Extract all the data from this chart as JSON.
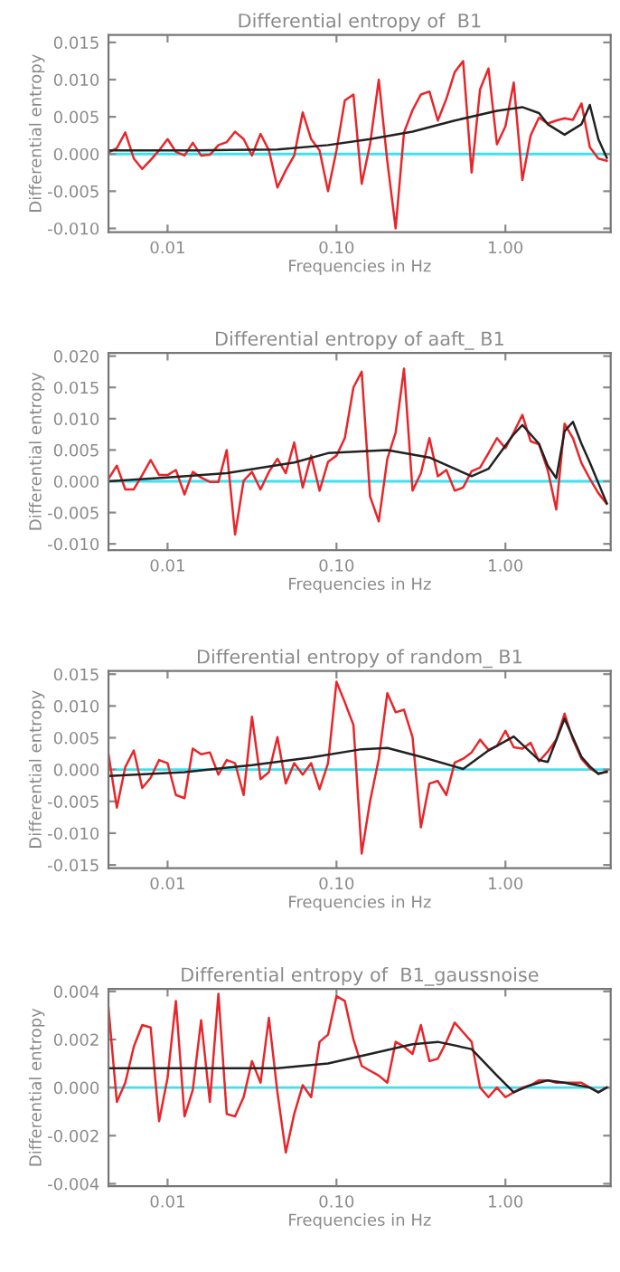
{
  "chart_data": [
    {
      "type": "line",
      "title": "Differential entropy of  B1",
      "xlabel": "Frequencies in Hz",
      "ylabel": "Differential entropy",
      "log": "x",
      "xlim": [
        0.00447,
        4.2
      ],
      "xticks": [
        {
          "value": 0.01,
          "label": "0.01"
        },
        {
          "value": 0.1,
          "label": "0.10"
        },
        {
          "value": 1,
          "label": "1.00"
        }
      ],
      "ylim": [
        -0.0105,
        0.016
      ],
      "yticks": [
        {
          "value": -0.01,
          "label": "-0.010"
        },
        {
          "value": -0.005,
          "label": "-0.005"
        },
        {
          "value": 0,
          "label": "0.000"
        },
        {
          "value": 0.005,
          "label": "0.005"
        },
        {
          "value": 0.01,
          "label": "0.010"
        },
        {
          "value": 0.015,
          "label": "0.015"
        }
      ],
      "ref_lines": [
        {
          "axis": "y",
          "value": 0,
          "color": "#40e0ee"
        }
      ],
      "x": [
        0.00447,
        0.00501,
        0.00562,
        0.00631,
        0.00708,
        0.00794,
        0.00891,
        0.01,
        0.0112,
        0.0126,
        0.0141,
        0.0158,
        0.0178,
        0.02,
        0.0224,
        0.0251,
        0.0282,
        0.0316,
        0.0355,
        0.0398,
        0.0447,
        0.0501,
        0.0562,
        0.0631,
        0.0708,
        0.0794,
        0.0891,
        0.1,
        0.112,
        0.126,
        0.141,
        0.158,
        0.178,
        0.2,
        0.224,
        0.251,
        0.282,
        0.316,
        0.355,
        0.398,
        0.447,
        0.501,
        0.562,
        0.631,
        0.708,
        0.794,
        0.891,
        1.0,
        1.12,
        1.26,
        1.41,
        1.58,
        1.78,
        2.0,
        2.24,
        2.51,
        2.82,
        3.16,
        3.55,
        3.98
      ],
      "series": [
        {
          "color": "#e8262a",
          "values": [
            0.0002,
            0.0008,
            0.0029,
            -0.0006,
            -0.002,
            -0.0008,
            0.0005,
            0.002,
            0.0003,
            -0.0002,
            0.0015,
            -0.0002,
            -0.0001,
            0.0012,
            0.0016,
            0.003,
            0.002,
            -0.0002,
            0.0027,
            0.0005,
            -0.0045,
            -0.0022,
            -0.0002,
            0.0056,
            0.002,
            0.0005,
            -0.005,
            0.0005,
            0.0072,
            0.008,
            -0.004,
            0.0013,
            0.01,
            -0.001,
            -0.01,
            0.0029,
            0.0059,
            0.008,
            0.0084,
            0.0045,
            0.0074,
            0.011,
            0.0125,
            -0.0025,
            0.0087,
            0.0115,
            0.0013,
            0.0037,
            0.0096,
            -0.0035,
            0.0025,
            0.0049,
            0.0041,
            0.0045,
            0.0048,
            0.0046,
            0.0068,
            0.0009,
            -0.0006,
            -0.0009
          ]
        },
        {
          "color": "#222222",
          "x": [
            0.00447,
            0.0141,
            0.0447,
            0.0891,
            0.158,
            0.282,
            0.501,
            0.891,
            1.26,
            1.58,
            1.78,
            2.24,
            2.82,
            3.16,
            3.55,
            3.98
          ],
          "values": [
            0.0005,
            0.0005,
            0.0006,
            0.0012,
            0.002,
            0.003,
            0.0045,
            0.0058,
            0.0063,
            0.0055,
            0.004,
            0.0026,
            0.004,
            0.0066,
            0.002,
            -0.0005
          ]
        }
      ]
    },
    {
      "type": "line",
      "title": "Differential entropy of aaft_ B1",
      "xlabel": "Frequencies in Hz",
      "ylabel": "Differential entropy",
      "log": "x",
      "xlim": [
        0.00447,
        4.2
      ],
      "xticks": [
        {
          "value": 0.01,
          "label": "0.01"
        },
        {
          "value": 0.1,
          "label": "0.10"
        },
        {
          "value": 1,
          "label": "1.00"
        }
      ],
      "ylim": [
        -0.011,
        0.0205
      ],
      "yticks": [
        {
          "value": -0.01,
          "label": "-0.010"
        },
        {
          "value": -0.005,
          "label": "-0.005"
        },
        {
          "value": 0,
          "label": "0.000"
        },
        {
          "value": 0.005,
          "label": "0.005"
        },
        {
          "value": 0.01,
          "label": "0.010"
        },
        {
          "value": 0.015,
          "label": "0.015"
        },
        {
          "value": 0.02,
          "label": "0.020"
        }
      ],
      "ref_lines": [
        {
          "axis": "y",
          "value": 0,
          "color": "#40e0ee"
        }
      ],
      "x": [
        0.00447,
        0.00501,
        0.00562,
        0.00631,
        0.00708,
        0.00794,
        0.00891,
        0.01,
        0.0112,
        0.0126,
        0.0141,
        0.0158,
        0.0178,
        0.02,
        0.0224,
        0.0251,
        0.0282,
        0.0316,
        0.0355,
        0.0398,
        0.0447,
        0.0501,
        0.0562,
        0.0631,
        0.0708,
        0.0794,
        0.0891,
        0.1,
        0.112,
        0.126,
        0.141,
        0.158,
        0.178,
        0.2,
        0.224,
        0.251,
        0.282,
        0.316,
        0.355,
        0.398,
        0.447,
        0.501,
        0.562,
        0.631,
        0.708,
        0.794,
        0.891,
        1.0,
        1.12,
        1.26,
        1.41,
        1.58,
        1.78,
        2.0,
        2.24,
        2.51,
        2.82,
        3.16,
        3.55,
        3.98
      ],
      "series": [
        {
          "color": "#e8262a",
          "values": [
            0.0004,
            0.0025,
            -0.0013,
            -0.0013,
            0.001,
            0.0034,
            0.001,
            0.001,
            0.0018,
            -0.0021,
            0.0015,
            0.0006,
            -0.0001,
            -0.0001,
            0.005,
            -0.0085,
            0.0001,
            0.0015,
            -0.0013,
            0.0015,
            0.0036,
            0.0013,
            0.0062,
            -0.001,
            0.0041,
            -0.0015,
            0.0031,
            0.0041,
            0.0069,
            0.015,
            0.0175,
            -0.0024,
            -0.0064,
            0.0036,
            0.0078,
            0.018,
            -0.0015,
            0.0013,
            0.0069,
            0.0008,
            0.0018,
            -0.0015,
            -0.001,
            0.0016,
            0.0022,
            0.0045,
            0.0069,
            0.0053,
            0.0078,
            0.0106,
            0.0064,
            0.0059,
            0.0018,
            -0.0045,
            0.0092,
            0.0069,
            0.0029,
            0.0004,
            -0.0019,
            -0.0036
          ]
        },
        {
          "color": "#222222",
          "x": [
            0.00447,
            0.01,
            0.0224,
            0.0562,
            0.0891,
            0.2,
            0.355,
            0.631,
            0.794,
            1.12,
            1.26,
            1.58,
            1.78,
            2.0,
            2.24,
            2.51,
            2.82,
            3.16,
            3.98
          ],
          "values": [
            0.0,
            0.0006,
            0.0013,
            0.003,
            0.0045,
            0.005,
            0.0038,
            0.0008,
            0.002,
            0.0075,
            0.009,
            0.006,
            0.0025,
            0.0005,
            0.008,
            0.0095,
            0.006,
            0.003,
            -0.0035
          ]
        }
      ]
    },
    {
      "type": "line",
      "title": "Differential entropy of random_ B1",
      "xlabel": "Frequencies in Hz",
      "ylabel": "Differential entropy",
      "log": "x",
      "xlim": [
        0.00447,
        4.2
      ],
      "xticks": [
        {
          "value": 0.01,
          "label": "0.01"
        },
        {
          "value": 0.1,
          "label": "0.10"
        },
        {
          "value": 1,
          "label": "1.00"
        }
      ],
      "ylim": [
        -0.0155,
        0.0155
      ],
      "yticks": [
        {
          "value": -0.015,
          "label": "-0.015"
        },
        {
          "value": -0.01,
          "label": "-0.010"
        },
        {
          "value": -0.005,
          "label": "-0.005"
        },
        {
          "value": 0,
          "label": "0.000"
        },
        {
          "value": 0.005,
          "label": "0.005"
        },
        {
          "value": 0.01,
          "label": "0.010"
        },
        {
          "value": 0.015,
          "label": "0.015"
        }
      ],
      "ref_lines": [
        {
          "axis": "y",
          "value": 0,
          "color": "#40e0ee"
        }
      ],
      "x": [
        0.00447,
        0.00501,
        0.00562,
        0.00631,
        0.00708,
        0.00794,
        0.00891,
        0.01,
        0.0112,
        0.0126,
        0.0141,
        0.0158,
        0.0178,
        0.02,
        0.0224,
        0.0251,
        0.0282,
        0.0316,
        0.0355,
        0.0398,
        0.0447,
        0.0501,
        0.0562,
        0.0631,
        0.0708,
        0.0794,
        0.0891,
        0.1,
        0.112,
        0.126,
        0.141,
        0.158,
        0.178,
        0.2,
        0.224,
        0.251,
        0.282,
        0.316,
        0.355,
        0.398,
        0.447,
        0.501,
        0.562,
        0.631,
        0.708,
        0.794,
        0.891,
        1.0,
        1.12,
        1.26,
        1.41,
        1.58,
        1.78,
        2.0,
        2.24,
        2.51,
        2.82,
        3.16,
        3.55,
        3.98
      ],
      "series": [
        {
          "color": "#e8262a",
          "values": [
            0.0024,
            -0.006,
            0.0004,
            0.003,
            -0.0029,
            -0.0013,
            0.0015,
            0.001,
            -0.004,
            -0.0045,
            0.0033,
            0.0024,
            0.0027,
            -0.0008,
            0.0015,
            0.001,
            -0.004,
            0.0083,
            -0.0015,
            -0.0004,
            0.0051,
            -0.0022,
            0.001,
            -0.0008,
            0.001,
            -0.0031,
            0.001,
            0.0138,
            0.0106,
            0.007,
            -0.0132,
            -0.005,
            0.0017,
            0.012,
            0.009,
            0.0094,
            0.0051,
            -0.0091,
            -0.0022,
            -0.0018,
            -0.004,
            0.0011,
            0.0017,
            0.0027,
            0.0047,
            0.0031,
            0.0037,
            0.0061,
            0.0035,
            0.0033,
            0.0042,
            0.0013,
            0.0028,
            0.0047,
            0.0088,
            0.0047,
            0.0017,
            0.0002,
            -0.0006,
            -0.0004
          ]
        },
        {
          "color": "#222222",
          "x": [
            0.00447,
            0.0126,
            0.0316,
            0.0708,
            0.141,
            0.2,
            0.316,
            0.562,
            0.794,
            1.12,
            1.58,
            1.78,
            2.24,
            2.82,
            3.16,
            3.55,
            3.98
          ],
          "values": [
            -0.001,
            -0.0004,
            0.0007,
            0.0019,
            0.0032,
            0.0034,
            0.002,
            0.0001,
            0.003,
            0.0052,
            0.0015,
            0.0012,
            0.008,
            0.002,
            0.0005,
            -0.0007,
            -0.0003
          ]
        }
      ]
    },
    {
      "type": "line",
      "title": "Differential entropy of  B1_gaussnoise",
      "xlabel": "Frequencies in Hz",
      "ylabel": "Differential entropy",
      "log": "x",
      "xlim": [
        0.00447,
        4.2
      ],
      "xticks": [
        {
          "value": 0.01,
          "label": "0.01"
        },
        {
          "value": 0.1,
          "label": "0.10"
        },
        {
          "value": 1,
          "label": "1.00"
        }
      ],
      "ylim": [
        -0.0041,
        0.0041
      ],
      "yticks": [
        {
          "value": -0.004,
          "label": "-0.004"
        },
        {
          "value": -0.002,
          "label": "-0.002"
        },
        {
          "value": 0,
          "label": "0.000"
        },
        {
          "value": 0.002,
          "label": "0.002"
        },
        {
          "value": 0.004,
          "label": "0.004"
        }
      ],
      "ref_lines": [
        {
          "axis": "y",
          "value": 0,
          "color": "#40e0ee"
        }
      ],
      "x": [
        0.00447,
        0.00501,
        0.00562,
        0.00631,
        0.00708,
        0.00794,
        0.00891,
        0.01,
        0.0112,
        0.0126,
        0.0141,
        0.0158,
        0.0178,
        0.02,
        0.0224,
        0.0251,
        0.0282,
        0.0316,
        0.0355,
        0.0398,
        0.0447,
        0.0501,
        0.0562,
        0.0631,
        0.0708,
        0.0794,
        0.0891,
        0.1,
        0.112,
        0.126,
        0.141,
        0.158,
        0.178,
        0.2,
        0.224,
        0.251,
        0.282,
        0.316,
        0.355,
        0.398,
        0.447,
        0.501,
        0.562,
        0.631,
        0.708,
        0.794,
        0.891,
        1.0,
        1.12,
        1.26,
        1.41,
        1.58,
        1.78,
        2.0,
        2.24,
        2.51,
        2.82,
        3.16,
        3.55,
        3.98
      ],
      "series": [
        {
          "color": "#e8262a",
          "values": [
            0.0033,
            -0.0006,
            0.0002,
            0.0017,
            0.0026,
            0.0025,
            -0.0014,
            0.0004,
            0.0036,
            -0.0012,
            -0.0001,
            0.0028,
            -0.0006,
            0.0039,
            -0.0011,
            -0.0012,
            -0.0004,
            0.0011,
            0.0002,
            0.0029,
            -0.0002,
            -0.0027,
            -0.0011,
            0.0001,
            -0.0004,
            0.0019,
            0.0022,
            0.0038,
            0.0036,
            0.002,
            0.0009,
            0.0007,
            0.0005,
            0.0002,
            0.0019,
            0.0017,
            0.0014,
            0.0026,
            0.0011,
            0.0012,
            0.0019,
            0.0027,
            0.0023,
            0.0019,
            0.0,
            -0.0004,
            0.0,
            -0.0004,
            -0.0002,
            0.0,
            0.0001,
            0.0003,
            0.0003,
            0.0002,
            0.0002,
            0.0002,
            0.0002,
            0.0,
            -0.0002,
            0.0
          ]
        },
        {
          "color": "#222222",
          "x": [
            0.00447,
            0.0447,
            0.0891,
            0.158,
            0.282,
            0.398,
            0.631,
            0.891,
            1.12,
            1.41,
            1.78,
            2.24,
            3.16,
            3.55,
            3.98
          ],
          "values": [
            0.0008,
            0.0008,
            0.001,
            0.0014,
            0.0018,
            0.0019,
            0.0016,
            0.0005,
            -0.0002,
            0.0001,
            0.0003,
            0.0002,
            0.0,
            -0.0002,
            0.0
          ]
        }
      ]
    }
  ]
}
